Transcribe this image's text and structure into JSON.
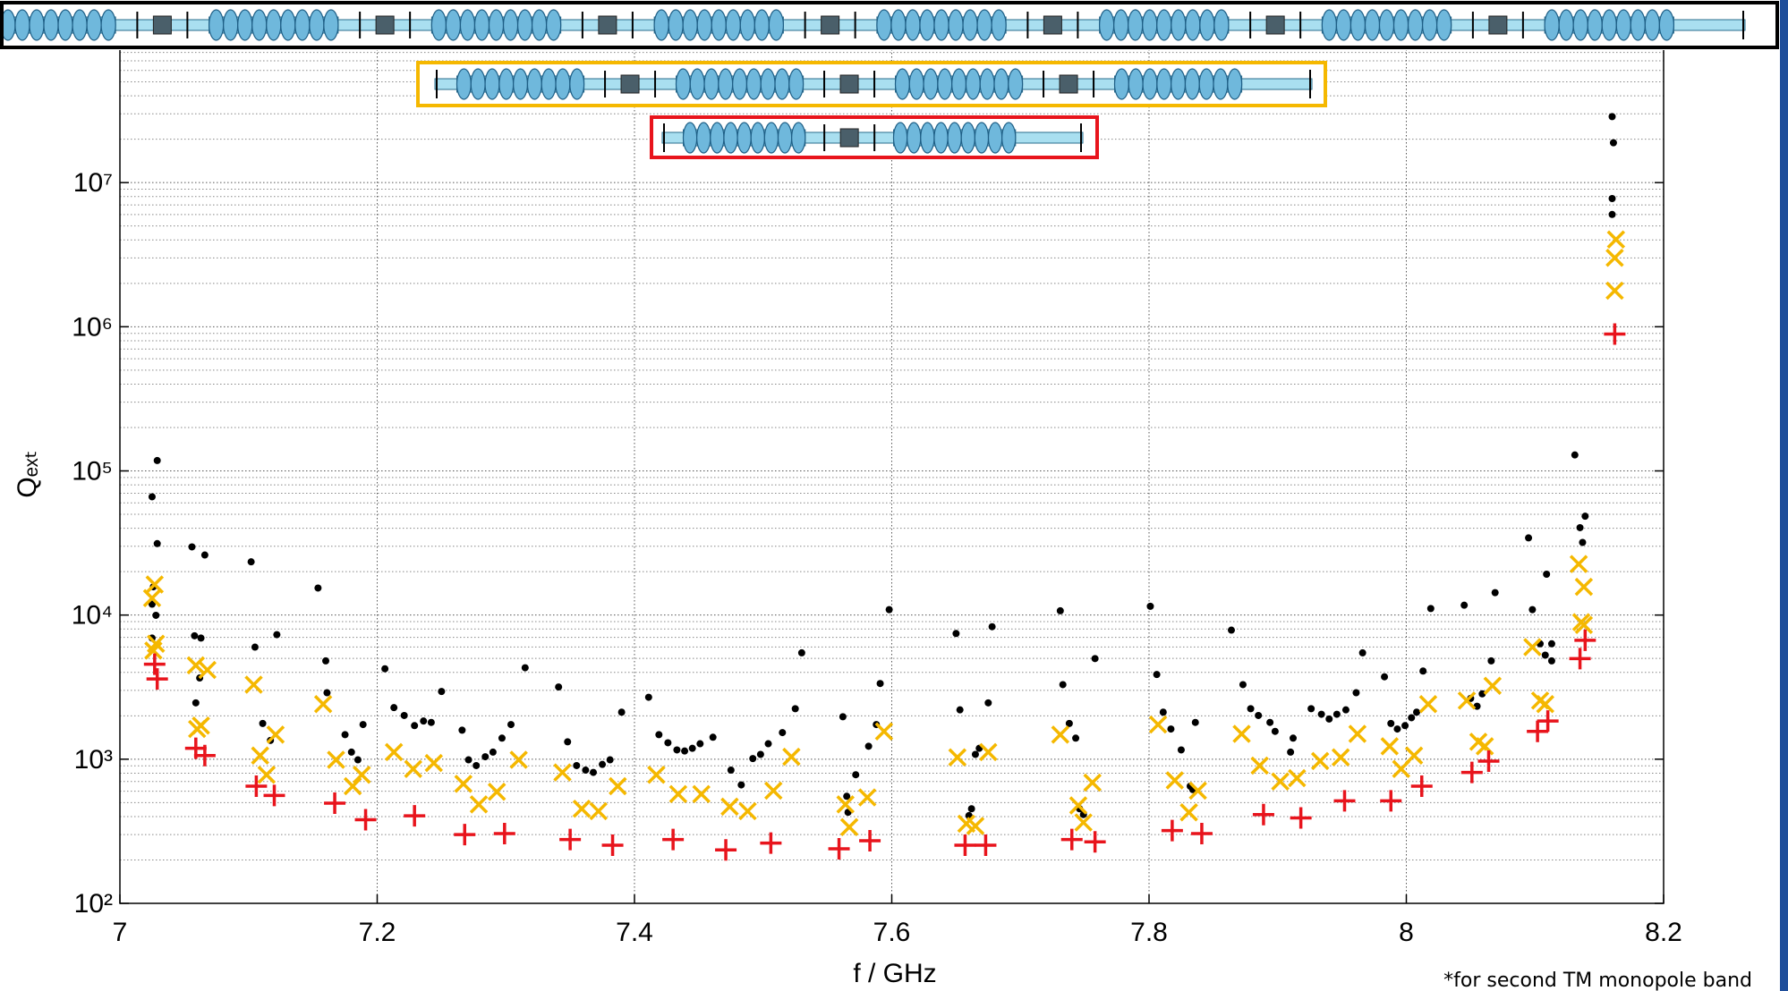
{
  "chart_data": {
    "type": "scatter",
    "x_label": "f / GHz",
    "y_label": "Qₑₓₜ",
    "note": "*for second TM monopole band",
    "xlim": [
      7,
      8.2
    ],
    "ylim": [
      100,
      100000000
    ],
    "log_y": true,
    "grid": true,
    "xticks": [
      7,
      7.2,
      7.4,
      7.6,
      7.8,
      8,
      8.2
    ],
    "yticks": [
      {
        "value": 100,
        "label": "10²"
      },
      {
        "value": 1000,
        "label": "10³"
      },
      {
        "value": 10000,
        "label": "10⁴"
      },
      {
        "value": 100000,
        "label": "10⁵"
      },
      {
        "value": 1000000,
        "label": "10⁶"
      },
      {
        "value": 10000000,
        "label": "10⁷"
      }
    ],
    "series": [
      {
        "color": "#000000",
        "marker": "dot",
        "x": [
          7.025,
          7.029,
          7.029,
          7.026,
          7.025,
          7.028,
          7.025,
          7.056,
          7.058,
          7.063,
          7.066,
          7.062,
          7.059,
          7.102,
          7.105,
          7.111,
          7.117,
          7.122,
          7.154,
          7.16,
          7.161,
          7.175,
          7.18,
          7.185,
          7.189,
          7.206,
          7.213,
          7.221,
          7.229,
          7.236,
          7.242,
          7.25,
          7.266,
          7.271,
          7.277,
          7.284,
          7.29,
          7.297,
          7.304,
          7.315,
          7.341,
          7.348,
          7.355,
          7.362,
          7.368,
          7.375,
          7.381,
          7.39,
          7.411,
          7.419,
          7.426,
          7.433,
          7.439,
          7.445,
          7.451,
          7.461,
          7.475,
          7.483,
          7.492,
          7.498,
          7.504,
          7.515,
          7.525,
          7.53,
          7.562,
          7.565,
          7.566,
          7.572,
          7.582,
          7.588,
          7.591,
          7.598,
          7.65,
          7.653,
          7.665,
          7.668,
          7.675,
          7.678,
          7.662,
          7.66,
          7.731,
          7.733,
          7.738,
          7.743,
          7.746,
          7.749,
          7.758,
          7.801,
          7.806,
          7.811,
          7.817,
          7.825,
          7.832,
          7.834,
          7.836,
          7.864,
          7.873,
          7.879,
          7.885,
          7.894,
          7.898,
          7.91,
          7.912,
          7.926,
          7.934,
          7.94,
          7.946,
          7.953,
          7.961,
          7.966,
          7.983,
          7.988,
          7.993,
          7.999,
          8.004,
          8.008,
          8.013,
          8.019,
          8.045,
          8.05,
          8.055,
          8.059,
          8.066,
          8.069,
          8.095,
          8.098,
          8.104,
          8.108,
          8.113,
          8.113,
          8.109,
          8.131,
          8.135,
          8.137,
          8.139,
          8.16,
          8.16,
          8.161,
          8.16
        ],
        "values": [
          66100,
          118000,
          31300,
          15700,
          11900,
          9960,
          6920,
          29700,
          7180,
          6920,
          26100,
          3660,
          2460,
          23400,
          5990,
          1770,
          1350,
          7310,
          15400,
          4810,
          2890,
          1480,
          1120,
          990,
          1740,
          4240,
          2280,
          2010,
          1710,
          1840,
          1800,
          2950,
          1590,
          990,
          903,
          1040,
          1120,
          1400,
          1740,
          4310,
          3170,
          1320,
          903,
          840,
          810,
          920,
          990,
          2120,
          2690,
          1480,
          1300,
          1160,
          1140,
          1190,
          1280,
          1420,
          840,
          663,
          1010,
          1080,
          1280,
          1530,
          2240,
          5470,
          1970,
          553,
          428,
          780,
          1230,
          1740,
          3350,
          10900,
          7450,
          2200,
          1080,
          1190,
          2460,
          8300,
          453,
          406,
          10700,
          3290,
          1770,
          1400,
          453,
          413,
          4990,
          11500,
          3870,
          2120,
          1620,
          1160,
          650,
          616,
          1800,
          7860,
          3290,
          2240,
          2010,
          1800,
          1560,
          1120,
          1400,
          2240,
          2050,
          1900,
          2050,
          2200,
          2890,
          5470,
          3730,
          1770,
          1620,
          1710,
          1940,
          2120,
          4090,
          11100,
          11700,
          2640,
          2330,
          2840,
          4810,
          14300,
          34300,
          10900,
          6320,
          5270,
          6320,
          4810,
          19200,
          129000,
          40400,
          31900,
          48500,
          6010000,
          7750000,
          18900000,
          28700000
        ]
      },
      {
        "color": "#f5b800",
        "marker": "x",
        "x": [
          7.025,
          7.027,
          7.026,
          7.028,
          7.059,
          7.06,
          7.063,
          7.068,
          7.104,
          7.109,
          7.114,
          7.121,
          7.158,
          7.168,
          7.181,
          7.188,
          7.213,
          7.228,
          7.244,
          7.267,
          7.279,
          7.293,
          7.31,
          7.344,
          7.359,
          7.372,
          7.387,
          7.417,
          7.434,
          7.452,
          7.474,
          7.488,
          7.508,
          7.522,
          7.564,
          7.567,
          7.581,
          7.594,
          7.651,
          7.658,
          7.665,
          7.675,
          7.731,
          7.745,
          7.749,
          7.756,
          7.807,
          7.82,
          7.831,
          7.838,
          7.872,
          7.886,
          7.902,
          7.915,
          7.933,
          7.949,
          7.962,
          7.987,
          7.996,
          8.006,
          8.017,
          8.047,
          8.056,
          8.061,
          8.067,
          8.098,
          8.104,
          8.108,
          8.134,
          8.138,
          8.136,
          8.138,
          8.162,
          8.162,
          8.163
        ],
        "values": [
          13100,
          16300,
          5670,
          6320,
          4480,
          1620,
          1710,
          4160,
          3290,
          1060,
          780,
          1480,
          2410,
          990,
          650,
          780,
          1120,
          855,
          940,
          675,
          486,
          594,
          990,
          810,
          453,
          436,
          650,
          780,
          573,
          573,
          469,
          436,
          605,
          1040,
          486,
          338,
          543,
          1560,
          1030,
          357,
          344,
          1120,
          1480,
          478,
          364,
          688,
          1740,
          713,
          428,
          605,
          1500,
          903,
          700,
          739,
          971,
          1030,
          1500,
          1230,
          855,
          1060,
          2410,
          2550,
          1320,
          1230,
          3230,
          5990,
          2550,
          2410,
          22600,
          15700,
          8930,
          8530,
          1780000,
          3010000,
          4030000
        ]
      },
      {
        "color": "#e8141c",
        "marker": "plus",
        "x": [
          7.027,
          7.029,
          7.059,
          7.066,
          7.106,
          7.12,
          7.167,
          7.191,
          7.229,
          7.268,
          7.299,
          7.35,
          7.383,
          7.43,
          7.471,
          7.506,
          7.559,
          7.583,
          7.657,
          7.673,
          7.74,
          7.758,
          7.818,
          7.841,
          7.889,
          7.918,
          7.952,
          7.988,
          8.012,
          8.051,
          8.064,
          8.102,
          8.11,
          8.135,
          8.139,
          8.162
        ],
        "values": [
          4560,
          3600,
          1190,
          1060,
          650,
          560,
          495,
          380,
          405,
          300,
          305,
          277,
          253,
          277,
          235,
          262,
          239,
          272,
          253,
          253,
          277,
          267,
          320,
          305,
          413,
          391,
          514,
          514,
          650,
          810,
          970,
          1560,
          1840,
          4990,
          6680,
          890000
        ]
      }
    ]
  }
}
